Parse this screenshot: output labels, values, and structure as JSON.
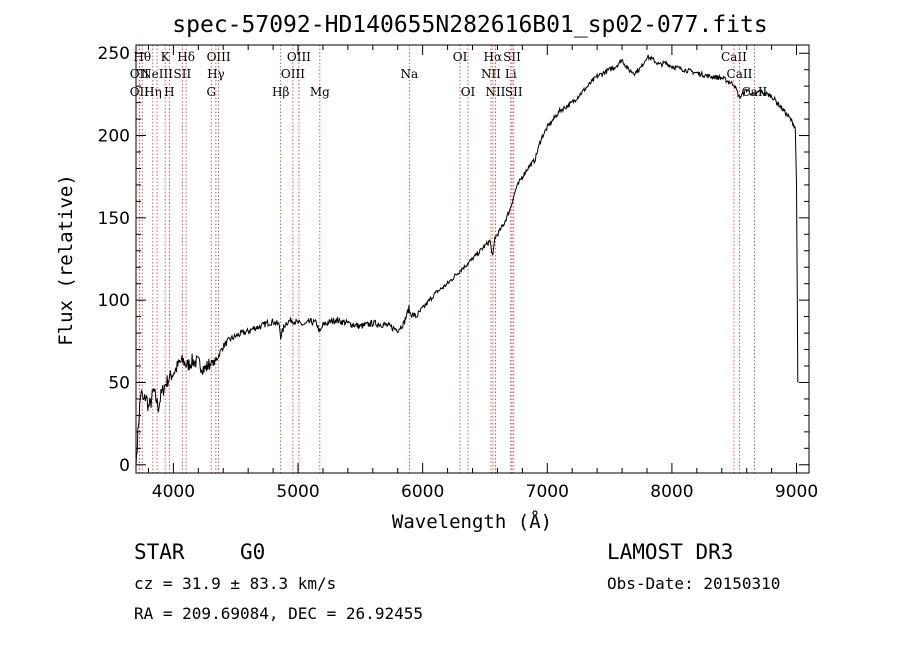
{
  "chart_data": {
    "type": "line",
    "title": "spec-57092-HD140655N282616B01_sp02-077.fits",
    "xlabel": "Wavelength (Å)",
    "ylabel": "Flux (relative)",
    "xlim": [
      3700,
      9100
    ],
    "ylim": [
      -5,
      255
    ],
    "xticks": [
      4000,
      5000,
      6000,
      7000,
      8000,
      9000
    ],
    "yticks": [
      0,
      50,
      100,
      150,
      200,
      250
    ],
    "series": [
      {
        "name": "flux",
        "x": [
          3700,
          3720,
          3740,
          3760,
          3780,
          3800,
          3820,
          3840,
          3860,
          3880,
          3900,
          3930,
          3960,
          3990,
          4020,
          4050,
          4080,
          4110,
          4150,
          4200,
          4250,
          4300,
          4330,
          4360,
          4400,
          4450,
          4500,
          4550,
          4600,
          4650,
          4700,
          4750,
          4800,
          4850,
          4861,
          4900,
          4950,
          5000,
          5050,
          5100,
          5150,
          5175,
          5200,
          5300,
          5400,
          5500,
          5600,
          5700,
          5800,
          5850,
          5890,
          5900,
          5950,
          6000,
          6100,
          6200,
          6300,
          6400,
          6500,
          6540,
          6563,
          6580,
          6600,
          6650,
          6700,
          6750,
          6800,
          6850,
          6900,
          6950,
          7000,
          7050,
          7100,
          7200,
          7300,
          7400,
          7500,
          7550,
          7600,
          7650,
          7700,
          7750,
          7800,
          7850,
          7900,
          7950,
          8000,
          8100,
          8200,
          8300,
          8400,
          8500,
          8542,
          8600,
          8662,
          8700,
          8800,
          8900,
          8950,
          8990,
          9000,
          9010
        ],
        "y": [
          0,
          25,
          45,
          38,
          42,
          35,
          38,
          45,
          40,
          35,
          42,
          48,
          52,
          55,
          58,
          62,
          63,
          60,
          63,
          62,
          58,
          62,
          62,
          66,
          72,
          76,
          78,
          80,
          81,
          83,
          84,
          86,
          87,
          85,
          78,
          86,
          88,
          86,
          85,
          87,
          86,
          80,
          85,
          88,
          86,
          84,
          86,
          85,
          82,
          86,
          95,
          92,
          90,
          95,
          104,
          110,
          118,
          125,
          133,
          136,
          126,
          138,
          140,
          146,
          155,
          168,
          175,
          181,
          185,
          198,
          205,
          210,
          215,
          220,
          228,
          236,
          240,
          242,
          246,
          240,
          238,
          241,
          248,
          246,
          243,
          244,
          242,
          240,
          238,
          236,
          235,
          231,
          223,
          228,
          224,
          227,
          224,
          215,
          210,
          205,
          170,
          50
        ]
      }
    ],
    "lines": [
      {
        "wl": 3750,
        "label": "Hθ",
        "row": 0
      },
      {
        "wl": 3727,
        "label": "OII",
        "row": 1
      },
      {
        "wl": 3727,
        "label": "OII",
        "row": 2
      },
      {
        "wl": 3835,
        "label": "Hη",
        "row": 2
      },
      {
        "wl": 3869,
        "label": "NeIII",
        "row": 1
      },
      {
        "wl": 3934,
        "label": "K",
        "row": 0
      },
      {
        "wl": 3968,
        "label": "H",
        "row": 2
      },
      {
        "wl": 4072,
        "label": "SII",
        "row": 1
      },
      {
        "wl": 4102,
        "label": "Hδ",
        "row": 0
      },
      {
        "wl": 4304,
        "label": "G",
        "row": 2
      },
      {
        "wl": 4341,
        "label": "Hγ",
        "row": 1
      },
      {
        "wl": 4363,
        "label": "OIII",
        "row": 0
      },
      {
        "wl": 4861,
        "label": "Hβ",
        "row": 2
      },
      {
        "wl": 4959,
        "label": "OIII",
        "row": 1
      },
      {
        "wl": 5007,
        "label": "OIII",
        "row": 0
      },
      {
        "wl": 5175,
        "label": "Mg",
        "row": 2
      },
      {
        "wl": 5893,
        "label": "Na",
        "row": 1
      },
      {
        "wl": 6300,
        "label": "OI",
        "row": 0
      },
      {
        "wl": 6364,
        "label": "OI",
        "row": 2
      },
      {
        "wl": 6548,
        "label": "NII",
        "row": 1
      },
      {
        "wl": 6563,
        "label": "Hα",
        "row": 0
      },
      {
        "wl": 6584,
        "label": "NII",
        "row": 2
      },
      {
        "wl": 6707,
        "label": "Li",
        "row": 1
      },
      {
        "wl": 6717,
        "label": "SII",
        "row": 0
      },
      {
        "wl": 6731,
        "label": "SII",
        "row": 2
      },
      {
        "wl": 8498,
        "label": "CaII",
        "row": 0
      },
      {
        "wl": 8542,
        "label": "CaII",
        "row": 1
      },
      {
        "wl": 8662,
        "label": "CaII",
        "row": 2
      }
    ]
  },
  "info": {
    "class": "STAR",
    "subclass": "G0",
    "survey": "LAMOST DR3",
    "cz": "cz = 31.9 ± 83.3 km/s",
    "obs_date": "Obs-Date: 20150310",
    "coords": "RA = 209.69084, DEC =  26.92455"
  }
}
